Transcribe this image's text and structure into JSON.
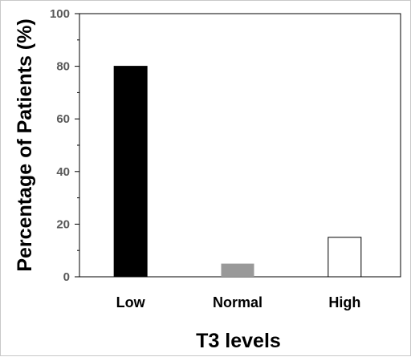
{
  "chart_data": {
    "type": "bar",
    "categories": [
      "Low",
      "Normal",
      "High"
    ],
    "values": [
      80,
      5,
      15
    ],
    "bar_colors": [
      "#000000",
      "#999999",
      "#ffffff"
    ],
    "xlabel": "T3 levels",
    "ylabel": "Percentage of Patients (%)",
    "ylim": [
      0,
      100
    ],
    "yticks": [
      0,
      20,
      40,
      60,
      80,
      100
    ],
    "grid": false,
    "legend": "none"
  }
}
